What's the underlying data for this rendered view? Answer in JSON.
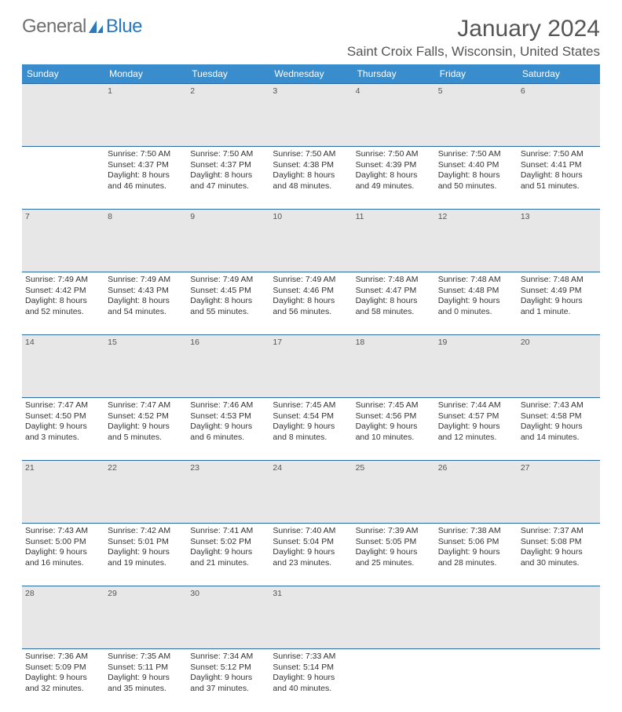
{
  "brand": {
    "general": "General",
    "blue": "Blue"
  },
  "header": {
    "month_title": "January 2024",
    "location": "Saint Croix Falls, Wisconsin, United States"
  },
  "colors": {
    "header_bg": "#3a8dcc",
    "header_text": "#ffffff",
    "daynum_bg": "#e7e7e7",
    "rule": "#2a6aa0",
    "text": "#333333",
    "logo_gray": "#707070",
    "logo_blue": "#2a78bd"
  },
  "dayNames": [
    "Sunday",
    "Monday",
    "Tuesday",
    "Wednesday",
    "Thursday",
    "Friday",
    "Saturday"
  ],
  "weeks": [
    {
      "nums": [
        "",
        "1",
        "2",
        "3",
        "4",
        "5",
        "6"
      ],
      "cells": [
        null,
        {
          "sunrise": "Sunrise: 7:50 AM",
          "sunset": "Sunset: 4:37 PM",
          "day1": "Daylight: 8 hours",
          "day2": "and 46 minutes."
        },
        {
          "sunrise": "Sunrise: 7:50 AM",
          "sunset": "Sunset: 4:37 PM",
          "day1": "Daylight: 8 hours",
          "day2": "and 47 minutes."
        },
        {
          "sunrise": "Sunrise: 7:50 AM",
          "sunset": "Sunset: 4:38 PM",
          "day1": "Daylight: 8 hours",
          "day2": "and 48 minutes."
        },
        {
          "sunrise": "Sunrise: 7:50 AM",
          "sunset": "Sunset: 4:39 PM",
          "day1": "Daylight: 8 hours",
          "day2": "and 49 minutes."
        },
        {
          "sunrise": "Sunrise: 7:50 AM",
          "sunset": "Sunset: 4:40 PM",
          "day1": "Daylight: 8 hours",
          "day2": "and 50 minutes."
        },
        {
          "sunrise": "Sunrise: 7:50 AM",
          "sunset": "Sunset: 4:41 PM",
          "day1": "Daylight: 8 hours",
          "day2": "and 51 minutes."
        }
      ]
    },
    {
      "nums": [
        "7",
        "8",
        "9",
        "10",
        "11",
        "12",
        "13"
      ],
      "cells": [
        {
          "sunrise": "Sunrise: 7:49 AM",
          "sunset": "Sunset: 4:42 PM",
          "day1": "Daylight: 8 hours",
          "day2": "and 52 minutes."
        },
        {
          "sunrise": "Sunrise: 7:49 AM",
          "sunset": "Sunset: 4:43 PM",
          "day1": "Daylight: 8 hours",
          "day2": "and 54 minutes."
        },
        {
          "sunrise": "Sunrise: 7:49 AM",
          "sunset": "Sunset: 4:45 PM",
          "day1": "Daylight: 8 hours",
          "day2": "and 55 minutes."
        },
        {
          "sunrise": "Sunrise: 7:49 AM",
          "sunset": "Sunset: 4:46 PM",
          "day1": "Daylight: 8 hours",
          "day2": "and 56 minutes."
        },
        {
          "sunrise": "Sunrise: 7:48 AM",
          "sunset": "Sunset: 4:47 PM",
          "day1": "Daylight: 8 hours",
          "day2": "and 58 minutes."
        },
        {
          "sunrise": "Sunrise: 7:48 AM",
          "sunset": "Sunset: 4:48 PM",
          "day1": "Daylight: 9 hours",
          "day2": "and 0 minutes."
        },
        {
          "sunrise": "Sunrise: 7:48 AM",
          "sunset": "Sunset: 4:49 PM",
          "day1": "Daylight: 9 hours",
          "day2": "and 1 minute."
        }
      ]
    },
    {
      "nums": [
        "14",
        "15",
        "16",
        "17",
        "18",
        "19",
        "20"
      ],
      "cells": [
        {
          "sunrise": "Sunrise: 7:47 AM",
          "sunset": "Sunset: 4:50 PM",
          "day1": "Daylight: 9 hours",
          "day2": "and 3 minutes."
        },
        {
          "sunrise": "Sunrise: 7:47 AM",
          "sunset": "Sunset: 4:52 PM",
          "day1": "Daylight: 9 hours",
          "day2": "and 5 minutes."
        },
        {
          "sunrise": "Sunrise: 7:46 AM",
          "sunset": "Sunset: 4:53 PM",
          "day1": "Daylight: 9 hours",
          "day2": "and 6 minutes."
        },
        {
          "sunrise": "Sunrise: 7:45 AM",
          "sunset": "Sunset: 4:54 PM",
          "day1": "Daylight: 9 hours",
          "day2": "and 8 minutes."
        },
        {
          "sunrise": "Sunrise: 7:45 AM",
          "sunset": "Sunset: 4:56 PM",
          "day1": "Daylight: 9 hours",
          "day2": "and 10 minutes."
        },
        {
          "sunrise": "Sunrise: 7:44 AM",
          "sunset": "Sunset: 4:57 PM",
          "day1": "Daylight: 9 hours",
          "day2": "and 12 minutes."
        },
        {
          "sunrise": "Sunrise: 7:43 AM",
          "sunset": "Sunset: 4:58 PM",
          "day1": "Daylight: 9 hours",
          "day2": "and 14 minutes."
        }
      ]
    },
    {
      "nums": [
        "21",
        "22",
        "23",
        "24",
        "25",
        "26",
        "27"
      ],
      "cells": [
        {
          "sunrise": "Sunrise: 7:43 AM",
          "sunset": "Sunset: 5:00 PM",
          "day1": "Daylight: 9 hours",
          "day2": "and 16 minutes."
        },
        {
          "sunrise": "Sunrise: 7:42 AM",
          "sunset": "Sunset: 5:01 PM",
          "day1": "Daylight: 9 hours",
          "day2": "and 19 minutes."
        },
        {
          "sunrise": "Sunrise: 7:41 AM",
          "sunset": "Sunset: 5:02 PM",
          "day1": "Daylight: 9 hours",
          "day2": "and 21 minutes."
        },
        {
          "sunrise": "Sunrise: 7:40 AM",
          "sunset": "Sunset: 5:04 PM",
          "day1": "Daylight: 9 hours",
          "day2": "and 23 minutes."
        },
        {
          "sunrise": "Sunrise: 7:39 AM",
          "sunset": "Sunset: 5:05 PM",
          "day1": "Daylight: 9 hours",
          "day2": "and 25 minutes."
        },
        {
          "sunrise": "Sunrise: 7:38 AM",
          "sunset": "Sunset: 5:06 PM",
          "day1": "Daylight: 9 hours",
          "day2": "and 28 minutes."
        },
        {
          "sunrise": "Sunrise: 7:37 AM",
          "sunset": "Sunset: 5:08 PM",
          "day1": "Daylight: 9 hours",
          "day2": "and 30 minutes."
        }
      ]
    },
    {
      "nums": [
        "28",
        "29",
        "30",
        "31",
        "",
        "",
        ""
      ],
      "cells": [
        {
          "sunrise": "Sunrise: 7:36 AM",
          "sunset": "Sunset: 5:09 PM",
          "day1": "Daylight: 9 hours",
          "day2": "and 32 minutes."
        },
        {
          "sunrise": "Sunrise: 7:35 AM",
          "sunset": "Sunset: 5:11 PM",
          "day1": "Daylight: 9 hours",
          "day2": "and 35 minutes."
        },
        {
          "sunrise": "Sunrise: 7:34 AM",
          "sunset": "Sunset: 5:12 PM",
          "day1": "Daylight: 9 hours",
          "day2": "and 37 minutes."
        },
        {
          "sunrise": "Sunrise: 7:33 AM",
          "sunset": "Sunset: 5:14 PM",
          "day1": "Daylight: 9 hours",
          "day2": "and 40 minutes."
        },
        null,
        null,
        null
      ]
    }
  ]
}
